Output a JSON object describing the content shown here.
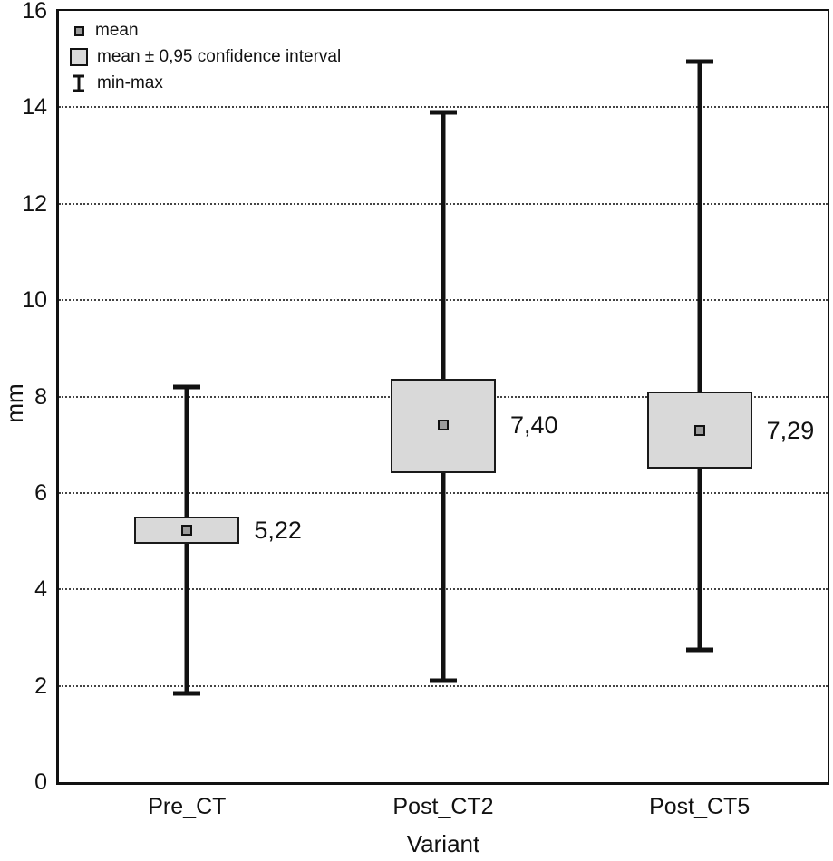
{
  "chart_data": {
    "type": "box",
    "title": "",
    "xlabel": "Variant",
    "ylabel": "mm",
    "ylim": [
      0,
      16
    ],
    "yticks": [
      0,
      2,
      4,
      6,
      8,
      10,
      12,
      14,
      16
    ],
    "grid": "horizontal-dotted",
    "legend_position": "top-left-inside",
    "legend": [
      {
        "label": "mean"
      },
      {
        "label": "mean ± 0,95 confidence interval"
      },
      {
        "label": "min-max"
      }
    ],
    "categories": [
      "Pre_CT",
      "Post_CT2",
      "Post_CT5"
    ],
    "series": [
      {
        "category": "Pre_CT",
        "mean": 5.22,
        "mean_label": "5,22",
        "ci_low": 4.95,
        "ci_high": 5.5,
        "min": 1.85,
        "max": 8.2
      },
      {
        "category": "Post_CT2",
        "mean": 7.4,
        "mean_label": "7,40",
        "ci_low": 6.42,
        "ci_high": 8.37,
        "min": 2.1,
        "max": 13.9
      },
      {
        "category": "Post_CT5",
        "mean": 7.29,
        "mean_label": "7,29",
        "ci_low": 6.5,
        "ci_high": 8.1,
        "min": 2.75,
        "max": 14.95
      }
    ]
  }
}
